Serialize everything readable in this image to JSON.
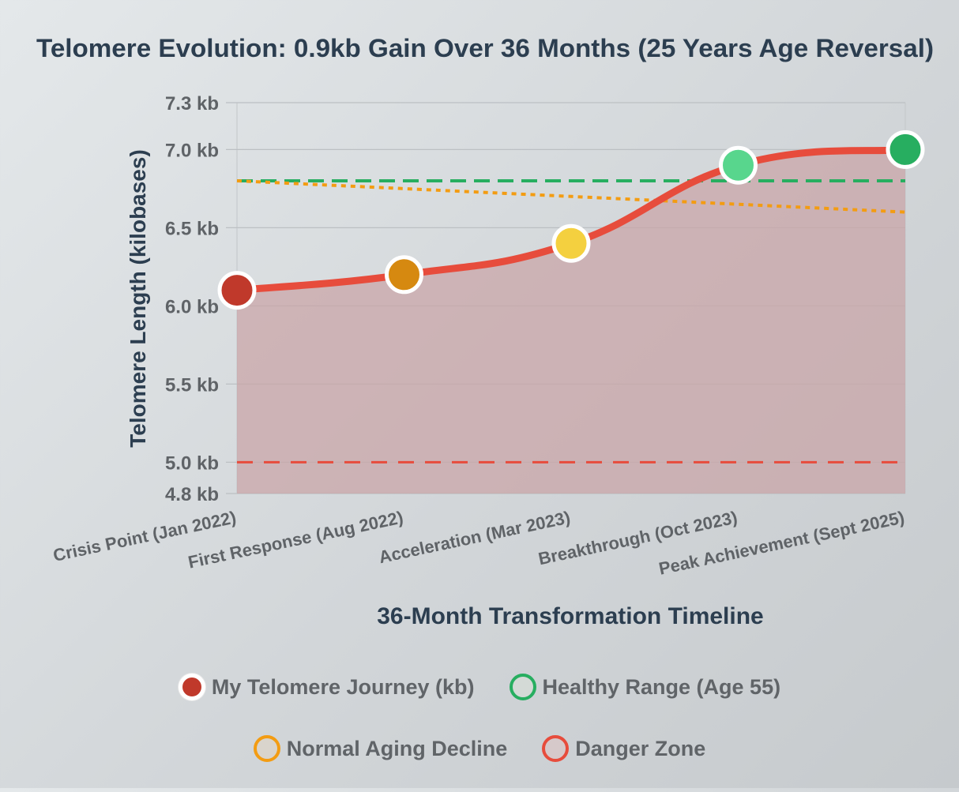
{
  "chart_data": {
    "type": "line",
    "title": "Telomere Evolution: 0.9kb Gain Over 36 Months (25 Years Age Reversal)",
    "xlabel": "36-Month Transformation Timeline",
    "ylabel": "Telomere Length (kilobases)",
    "ylim": [
      4.8,
      7.3
    ],
    "yticks": [
      {
        "value": 4.8,
        "label": "4.8 kb"
      },
      {
        "value": 5.0,
        "label": "5.0 kb"
      },
      {
        "value": 5.5,
        "label": "5.5 kb"
      },
      {
        "value": 6.0,
        "label": "6.0 kb"
      },
      {
        "value": 6.5,
        "label": "6.5 kb"
      },
      {
        "value": 7.0,
        "label": "7.0 kb"
      },
      {
        "value": 7.3,
        "label": "7.3 kb"
      }
    ],
    "categories": [
      "Crisis Point (Jan 2022)",
      "First Response (Aug 2022)",
      "Acceleration (Mar 2023)",
      "Breakthrough (Oct 2023)",
      "Peak Achievement (Sept 2025)"
    ],
    "grid": true,
    "series": [
      {
        "name": "My Telomere Journey (kb)",
        "values": [
          6.1,
          6.2,
          6.4,
          6.9,
          7.0
        ],
        "color": "#e74c3c",
        "fill": "#c9a3a6",
        "point_colors": [
          "#c0392b",
          "#d68910",
          "#f4d03f",
          "#58d68d",
          "#27ae60"
        ],
        "style": "solid"
      },
      {
        "name": "Healthy Range (Age 55)",
        "values": [
          6.8,
          6.8,
          6.8,
          6.8,
          6.8
        ],
        "color": "#27ae60",
        "style": "dashed"
      },
      {
        "name": "Normal Aging Decline",
        "values": [
          6.8,
          6.75,
          6.7,
          6.65,
          6.6
        ],
        "color": "#f39c12",
        "style": "dotted"
      },
      {
        "name": "Danger Zone",
        "values": [
          5.0,
          5.0,
          5.0,
          5.0,
          5.0
        ],
        "color": "#e74c3c",
        "style": "dashed"
      }
    ]
  },
  "legend": {
    "items": [
      {
        "label": "My Telomere Journey (kb)",
        "fill": "#c0392b",
        "border": "#ffffff"
      },
      {
        "label": "Healthy Range (Age 55)",
        "fill": "#d4dad6",
        "border": "#27ae60"
      },
      {
        "label": "Normal Aging Decline",
        "fill": "#d9d4cc",
        "border": "#f39c12"
      },
      {
        "label": "Danger Zone",
        "fill": "#d6c9ca",
        "border": "#e74c3c"
      }
    ]
  }
}
